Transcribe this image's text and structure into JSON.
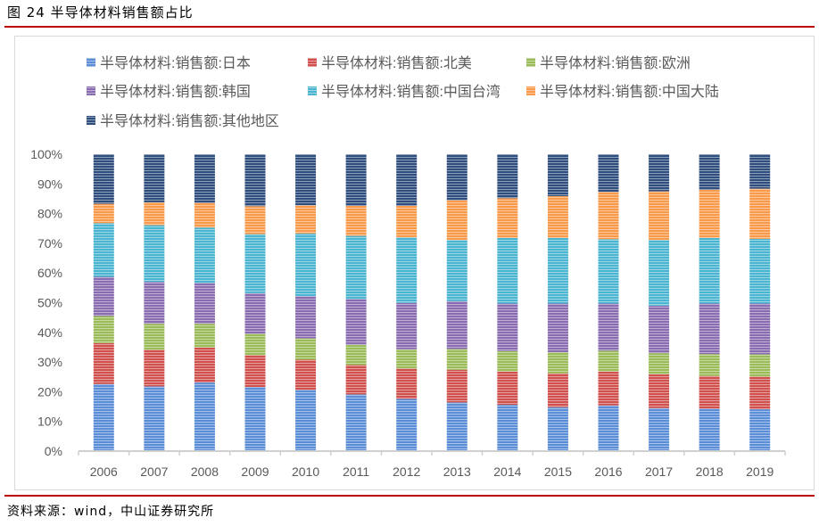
{
  "figure_title": "图 24  半导体材料销售额占比",
  "source": "资料来源：wind，中山证券研究所",
  "chart_data": {
    "type": "bar",
    "stacked": "percent",
    "title": "",
    "xlabel": "",
    "ylabel": "",
    "ylim": [
      0,
      100
    ],
    "yticks": [
      "0%",
      "10%",
      "20%",
      "30%",
      "40%",
      "50%",
      "60%",
      "70%",
      "80%",
      "90%",
      "100%"
    ],
    "grid": false,
    "legend_position": "top",
    "categories": [
      "2006",
      "2007",
      "2008",
      "2009",
      "2010",
      "2011",
      "2012",
      "2013",
      "2014",
      "2015",
      "2016",
      "2017",
      "2018",
      "2019"
    ],
    "series": [
      {
        "name": "半导体材料:销售额:日本",
        "color": "#5b8ed6",
        "values": [
          22.6,
          21.8,
          23.1,
          21.6,
          20.6,
          19.1,
          17.6,
          16.4,
          15.6,
          14.8,
          15.4,
          14.5,
          14.3,
          14.1
        ]
      },
      {
        "name": "半导体材料:销售额:北美",
        "color": "#d0504d",
        "values": [
          13.8,
          12.3,
          11.8,
          10.7,
          10.2,
          9.9,
          10.2,
          11.0,
          11.2,
          11.4,
          11.4,
          11.4,
          11.0,
          11.0
        ]
      },
      {
        "name": "半导体材料:销售额:欧洲",
        "color": "#9bbb59",
        "values": [
          9.1,
          8.8,
          8.0,
          7.2,
          7.2,
          6.8,
          6.5,
          7.0,
          6.9,
          7.1,
          7.0,
          7.1,
          7.4,
          7.5
        ]
      },
      {
        "name": "半导体材料:销售额:韩国",
        "color": "#8a6cb0",
        "values": [
          13.2,
          14.1,
          13.7,
          13.7,
          14.2,
          15.4,
          15.6,
          16.1,
          16.0,
          16.4,
          15.9,
          16.0,
          17.0,
          17.1
        ]
      },
      {
        "name": "半导体材料:销售额:中国台湾",
        "color": "#4bb4d0",
        "values": [
          18.1,
          19.1,
          18.7,
          19.9,
          21.1,
          21.3,
          22.1,
          20.6,
          22.1,
          22.1,
          21.7,
          22.1,
          22.1,
          21.8
        ]
      },
      {
        "name": "半导体材料:销售额:中国大陆",
        "color": "#f9994a",
        "values": [
          6.5,
          7.7,
          8.3,
          9.4,
          9.5,
          10.1,
          10.6,
          13.4,
          13.4,
          14.1,
          15.9,
          16.4,
          16.2,
          16.9
        ]
      },
      {
        "name": "半导体材料:销售额:其他地区",
        "color": "#2f4e7e",
        "values": [
          16.7,
          16.2,
          16.4,
          17.5,
          17.2,
          17.4,
          17.4,
          15.5,
          14.8,
          14.1,
          12.7,
          12.5,
          12.0,
          11.6
        ]
      }
    ]
  }
}
